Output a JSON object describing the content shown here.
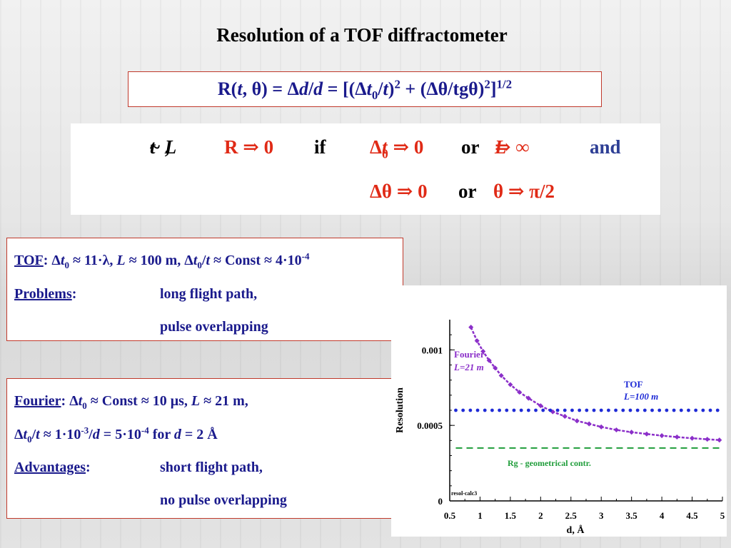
{
  "title": "Resolution of a TOF diffractometer",
  "formula": {
    "lhs": "R(t, θ) = Δd/d = [(Δt0/t)2 + (Δθ/tgθ)2]1/2"
  },
  "condition": {
    "t_prop": "t ~ L,",
    "r_to_zero": "R ⇒ 0",
    "if": "if",
    "dt0": "Δt0 ⇒ 0",
    "or1": "or",
    "l_inf": "L ⇒ ∞",
    "and": "and",
    "dtheta": "Δθ ⇒ 0",
    "or2": "or",
    "theta_pi": "θ ⇒ π/2"
  },
  "tof_box": {
    "head_label": "TOF",
    "head_text": ": Δt0 ≈ 11·λ, L ≈ 100 m, Δt0/t ≈ Const ≈ 4·10-4",
    "problems_label": "Problems",
    "colon": ":",
    "problem1": "long flight path,",
    "problem2": "pulse overlapping"
  },
  "fourier_box": {
    "head_label": "Fourier",
    "head_text": ": Δt0 ≈ Const ≈ 10 μs, L ≈ 21 m,",
    "line2": "Δt0/t ≈ 1·10-3/d = 5·10-4 for d = 2 Å",
    "advantages_label": "Advantages",
    "colon": ":",
    "adv1": "short flight path,",
    "adv2": "no pulse overlapping"
  },
  "chart_data": {
    "type": "scatter",
    "xlabel": "d, Å",
    "ylabel": "Resolution",
    "xlim": [
      0.5,
      5
    ],
    "ylim": [
      0,
      0.0012
    ],
    "xticks": [
      "0.5",
      "1",
      "1.5",
      "2",
      "2.5",
      "3",
      "3.5",
      "4",
      "4.5",
      "5"
    ],
    "yticks": [
      "0",
      "0.0005",
      "0.001"
    ],
    "corner_tag": "resol-calc3",
    "annotations": {
      "fourier_name": "Fourier",
      "fourier_l": "L=21 m",
      "tof_name": "TOF",
      "tof_l": "L=100 m",
      "geo": "Rg - geometrical contr."
    },
    "series": [
      {
        "name": "Fourier L=21 m",
        "color": "#8b2fc9",
        "x": [
          0.85,
          0.95,
          1.05,
          1.15,
          1.25,
          1.35,
          1.5,
          1.65,
          1.8,
          2.0,
          2.2,
          2.4,
          2.6,
          2.8,
          3.0,
          3.25,
          3.5,
          3.75,
          4.0,
          4.25,
          4.5,
          4.75,
          4.95
        ],
        "y": [
          0.00115,
          0.00106,
          0.00099,
          0.00093,
          0.00088,
          0.00083,
          0.00077,
          0.00072,
          0.00068,
          0.00063,
          0.00059,
          0.00056,
          0.00053,
          0.00051,
          0.00049,
          0.00047,
          0.000455,
          0.000443,
          0.000432,
          0.000423,
          0.000415,
          0.000408,
          0.000403
        ]
      },
      {
        "name": "TOF L=100 m",
        "color": "#1f2bd6",
        "constant": 0.0006
      },
      {
        "name": "Rg - geometrical contr.",
        "color": "#1f9d3a",
        "constant": 0.00035
      }
    ]
  }
}
